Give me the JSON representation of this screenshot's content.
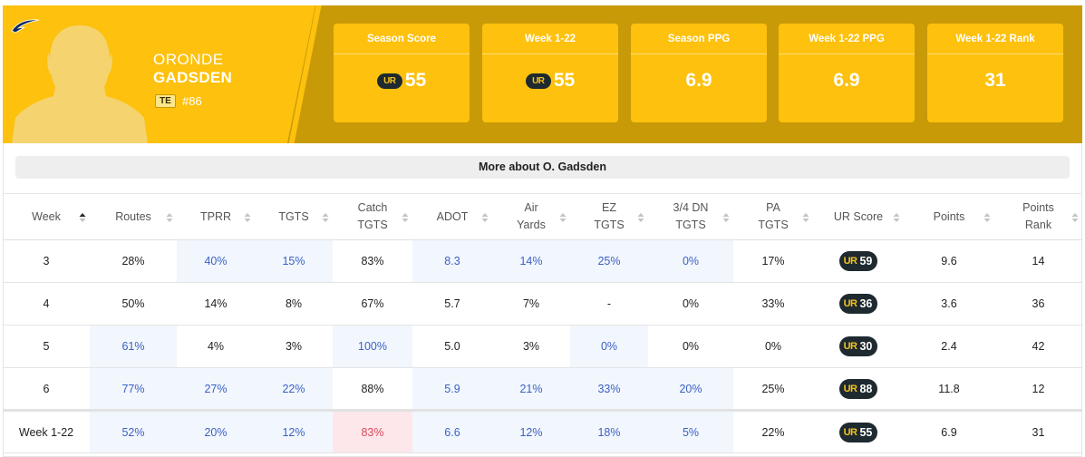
{
  "player": {
    "first_name": "ORONDE",
    "last_name": "GADSDEN",
    "position": "TE",
    "number": "#86"
  },
  "colors": {
    "brand": "#fdc10e",
    "brand_dark": "#c99a08",
    "ink": "#1e2a2f",
    "highlight": "#3b62c4",
    "bad": "#d9475a"
  },
  "icons": {
    "team_logo": "chargers-bolt-icon",
    "ur_badge": "ur-logo-icon"
  },
  "ur_label": "UR",
  "stat_cards": [
    {
      "label": "Season Score",
      "value": "55",
      "has_ur": true
    },
    {
      "label": "Week 1-22",
      "value": "55",
      "has_ur": true
    },
    {
      "label": "Season PPG",
      "value": "6.9",
      "has_ur": false
    },
    {
      "label": "Week 1-22 PPG",
      "value": "6.9",
      "has_ur": false
    },
    {
      "label": "Week 1-22 Rank",
      "value": "31",
      "has_ur": false
    }
  ],
  "more_button": "More about O. Gadsden",
  "table": {
    "columns": [
      {
        "label": "Week",
        "sort": "asc"
      },
      {
        "label": "Routes",
        "sort": "none"
      },
      {
        "label": "TPRR",
        "sort": "none"
      },
      {
        "label": "TGTS",
        "sort": "none"
      },
      {
        "label": "Catch TGTS",
        "sort": "none"
      },
      {
        "label": "ADOT",
        "sort": "none"
      },
      {
        "label": "Air Yards",
        "sort": "none"
      },
      {
        "label": "EZ TGTS",
        "sort": "none"
      },
      {
        "label": "3/4 DN TGTS",
        "sort": "none"
      },
      {
        "label": "PA TGTS",
        "sort": "none"
      },
      {
        "label": "UR Score",
        "sort": "none"
      },
      {
        "label": "Points",
        "sort": "none"
      },
      {
        "label": "Points Rank",
        "sort": "none"
      }
    ],
    "rows": [
      {
        "cells": [
          "3",
          "28%",
          "40%",
          "15%",
          "83%",
          "8.3",
          "14%",
          "25%",
          "0%",
          "17%",
          "59",
          "9.6",
          "14"
        ],
        "styles": [
          "",
          "",
          "hl",
          "hl",
          "",
          "hl",
          "hl",
          "hl",
          "hl",
          "",
          "",
          "",
          ""
        ]
      },
      {
        "cells": [
          "4",
          "50%",
          "14%",
          "8%",
          "67%",
          "5.7",
          "7%",
          "-",
          "0%",
          "33%",
          "36",
          "3.6",
          "36"
        ],
        "styles": [
          "",
          "",
          "",
          "",
          "",
          "",
          "",
          "",
          "",
          "",
          "",
          "",
          ""
        ]
      },
      {
        "cells": [
          "5",
          "61%",
          "4%",
          "3%",
          "100%",
          "5.0",
          "3%",
          "0%",
          "0%",
          "0%",
          "30",
          "2.4",
          "42"
        ],
        "styles": [
          "",
          "hl",
          "",
          "",
          "hl",
          "",
          "",
          "hl",
          "",
          "",
          "",
          "",
          ""
        ]
      },
      {
        "cells": [
          "6",
          "77%",
          "27%",
          "22%",
          "88%",
          "5.9",
          "21%",
          "33%",
          "20%",
          "25%",
          "88",
          "11.8",
          "12"
        ],
        "styles": [
          "",
          "hl",
          "hl",
          "hl",
          "",
          "hl",
          "hl",
          "hl",
          "hl",
          "",
          "",
          "",
          ""
        ]
      }
    ],
    "total": {
      "cells": [
        "Week 1-22",
        "52%",
        "20%",
        "12%",
        "83%",
        "6.6",
        "12%",
        "18%",
        "5%",
        "22%",
        "55",
        "6.9",
        "31"
      ],
      "styles": [
        "",
        "hl",
        "hl",
        "hl",
        "bad",
        "hl",
        "hl",
        "hl",
        "hl",
        "",
        "",
        "",
        ""
      ]
    }
  }
}
